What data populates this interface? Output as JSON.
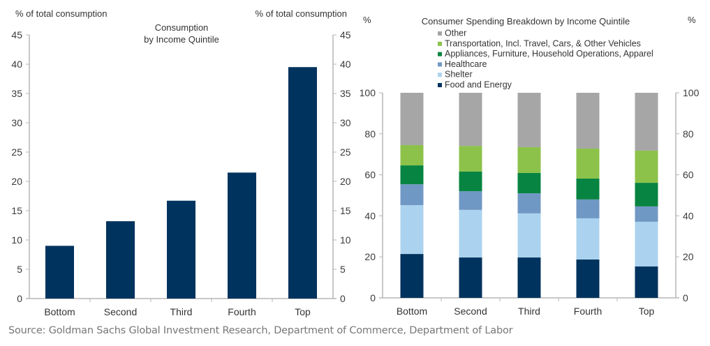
{
  "chart_data": [
    {
      "type": "bar",
      "title": "Consumption\nby Income Quintile",
      "title_lines": [
        "Consumption",
        "by Income Quintile"
      ],
      "ylabel_left": "% of total consumption",
      "ylabel_right": "% of total consumption",
      "xlabel": "",
      "categories": [
        "Bottom",
        "Second",
        "Third",
        "Fourth",
        "Top"
      ],
      "values": [
        9.0,
        13.2,
        16.7,
        21.5,
        39.5
      ],
      "ylim": [
        0,
        45
      ],
      "yticks": [
        0,
        5,
        10,
        15,
        20,
        25,
        30,
        35,
        40,
        45
      ],
      "bar_color": "#00335e",
      "grid": false
    },
    {
      "type": "bar",
      "stacked": true,
      "title": "Consumer Spending Breakdown  by Income Quintile",
      "ylabel_left": "%",
      "ylabel_right": "%",
      "xlabel": "",
      "categories": [
        "Bottom",
        "Second",
        "Third",
        "Fourth",
        "Top"
      ],
      "ylim": [
        0,
        100
      ],
      "yticks": [
        0,
        20,
        40,
        60,
        80,
        100
      ],
      "legend_position": "top-center",
      "grid": false,
      "series": [
        {
          "name": "Food and Energy",
          "color": "#00335e",
          "values": [
            21.4,
            19.7,
            19.7,
            18.7,
            15.3
          ]
        },
        {
          "name": "Shelter",
          "color": "#abd3ef",
          "values": [
            23.8,
            23.2,
            21.5,
            20.1,
            21.8
          ]
        },
        {
          "name": "Healthcare",
          "color": "#7098c4",
          "values": [
            10.2,
            9.1,
            9.8,
            9.2,
            7.5
          ]
        },
        {
          "name": "Appliances, Furniture, Household Operations, Apparel",
          "color": "#078441",
          "values": [
            9.2,
            9.6,
            9.9,
            10.2,
            11.5
          ]
        },
        {
          "name": "Transportation, Incl. Travel, Cars, & Other Vehicles",
          "color": "#8cc24a",
          "values": [
            9.9,
            12.5,
            12.6,
            14.6,
            15.7
          ]
        },
        {
          "name": "Other",
          "color": "#a6a6a6",
          "values": [
            25.5,
            25.9,
            26.5,
            27.2,
            28.2
          ]
        }
      ],
      "legend_order": [
        "Other",
        "Transportation, Incl. Travel, Cars, & Other Vehicles",
        "Appliances, Furniture, Household Operations, Apparel",
        "Healthcare",
        "Shelter",
        "Food and Energy"
      ]
    }
  ],
  "source": "Source: Goldman Sachs Global Investment Research, Department of Commerce, Department of Labor"
}
